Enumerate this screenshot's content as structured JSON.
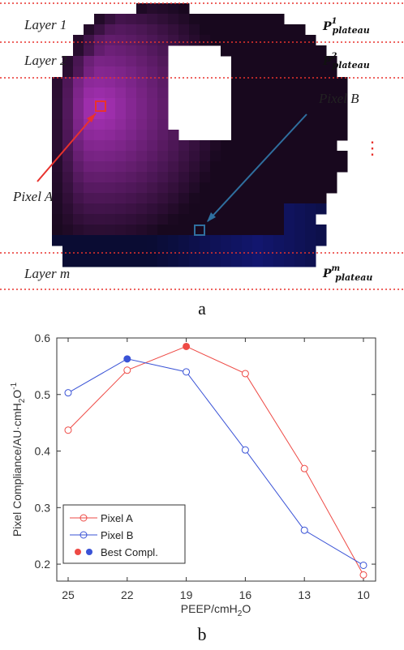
{
  "figure_a": {
    "layer_labels": [
      "Layer 1",
      "Layer 2",
      "Layer m"
    ],
    "plateau_sup": [
      "1",
      "2",
      "m"
    ],
    "plateau_symbol": "P",
    "plateau_sub": "plateau",
    "ellipsis": "⋮",
    "pixel_a_label": "Pixel A",
    "pixel_b_label": "Pixel B",
    "colors": {
      "dashed": "#e8322d",
      "pixel_a": "#e8322d",
      "pixel_b": "#2f6f9f",
      "tissue_bright": "#a52fb7",
      "tissue_dark": "#1a0a22",
      "bottom_region": "#0c1560"
    }
  },
  "panel_labels": {
    "a": "a",
    "b": "b"
  },
  "chart_data": {
    "type": "line",
    "x_categories": [
      "25",
      "22",
      "19",
      "16",
      "13",
      "10"
    ],
    "xlabel": "PEEP/cmH",
    "xlabel_sub": "2",
    "xlabel_tail": "O",
    "ylabel": "Pixel Compliance/AU·cmH",
    "ylabel_sub": "2",
    "ylabel_mid": "O",
    "ylabel_sup": "-1",
    "ylim": [
      0.17,
      0.6
    ],
    "yticks": [
      "0.2",
      "0.3",
      "0.4",
      "0.5",
      "0.6"
    ],
    "series": [
      {
        "name": "Pixel A",
        "color": "#ee4a45",
        "values": [
          0.437,
          0.543,
          0.585,
          0.537,
          0.369,
          0.181
        ],
        "best_index": 2
      },
      {
        "name": "Pixel B",
        "color": "#3a53d6",
        "values": [
          0.503,
          0.563,
          0.54,
          0.402,
          0.26,
          0.198
        ],
        "best_index": 1
      }
    ],
    "legend": {
      "placement": "bottom-left",
      "best_label": "Best Compl."
    }
  }
}
